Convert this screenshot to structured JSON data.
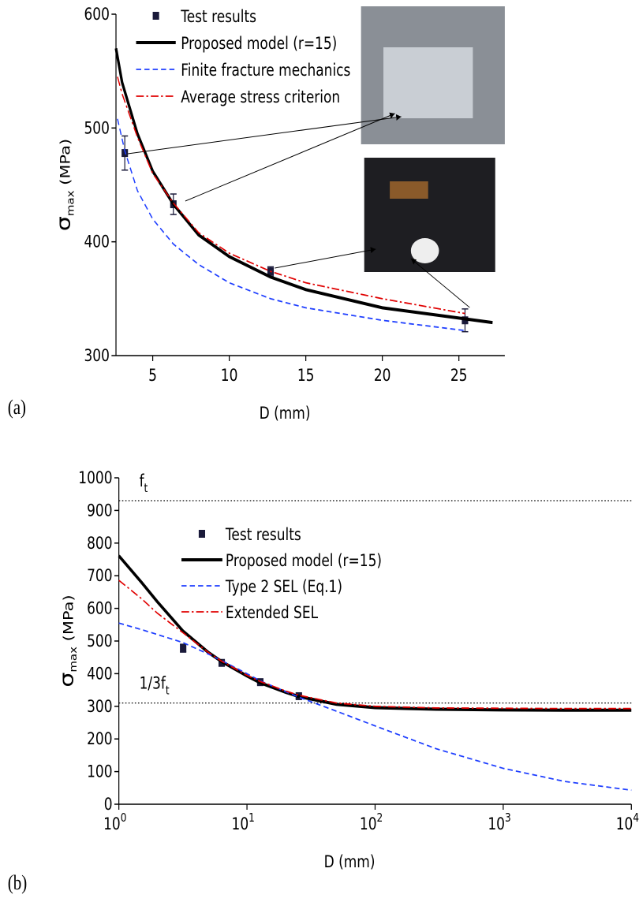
{
  "chart_data": [
    {
      "type": "line",
      "panel_label": "(a)",
      "x_label": "D (mm)",
      "y_label": "σ",
      "y_label_sub": "max",
      "y_label_unit": " (MPa)",
      "xlim": [
        2.6,
        28
      ],
      "xticks": [
        5,
        10,
        15,
        20,
        25
      ],
      "ylim": [
        300,
        600
      ],
      "yticks": [
        300,
        400,
        500,
        600
      ],
      "series": [
        {
          "name": "Test results",
          "color": "#1a1a3a",
          "marker": "square",
          "x": [
            3.175,
            6.35,
            12.7,
            25.4
          ],
          "values": [
            478,
            433,
            374,
            331
          ],
          "errors": [
            15,
            9,
            4,
            10
          ]
        },
        {
          "name": "Proposed model (r=15)",
          "color": "#000000",
          "style": "solid",
          "x": [
            2.6,
            3,
            4,
            5,
            6.35,
            8,
            10,
            12.7,
            15,
            20,
            25,
            27.2
          ],
          "values": [
            570,
            540,
            495,
            462,
            433,
            406,
            387,
            369,
            358,
            342,
            333,
            329
          ]
        },
        {
          "name": "Finite fracture mechanics",
          "color": "#1f3fff",
          "style": "dashed",
          "x": [
            2.7,
            3.175,
            4,
            5,
            6.35,
            8,
            10,
            12.7,
            15,
            20,
            25.4
          ],
          "values": [
            508,
            480,
            445,
            420,
            398,
            380,
            364,
            350,
            342,
            331,
            322
          ]
        },
        {
          "name": "Average stress criterion",
          "color": "#e00000",
          "style": "dashdot",
          "x": [
            2.7,
            3,
            4,
            5,
            6.35,
            8,
            10,
            12.7,
            15,
            20,
            25.4
          ],
          "values": [
            545,
            530,
            492,
            460,
            434,
            408,
            390,
            374,
            364,
            350,
            337
          ]
        }
      ]
    },
    {
      "type": "line",
      "panel_label": "(b)",
      "x_label": "D (mm)",
      "y_label": "σ",
      "y_label_sub": "max",
      "y_label_unit": " (MPa)",
      "xlog": true,
      "xlim": [
        1,
        10000
      ],
      "xticks": [
        {
          "value": 1,
          "label": "10",
          "exponent": "0"
        },
        {
          "value": 10,
          "label": "10",
          "exponent": "1"
        },
        {
          "value": 100,
          "label": "10",
          "exponent": "2"
        },
        {
          "value": 1000,
          "label": "10",
          "exponent": "3"
        },
        {
          "value": 10000,
          "label": "10",
          "exponent": "4"
        }
      ],
      "ylim": [
        0,
        1000
      ],
      "yticks": [
        0,
        100,
        200,
        300,
        400,
        500,
        600,
        700,
        800,
        900,
        1000
      ],
      "reference_lines": [
        {
          "value": 930,
          "label": "f",
          "sub": "t"
        },
        {
          "value": 310,
          "label": "1/3f",
          "sub": "t"
        }
      ],
      "series": [
        {
          "name": "Test results",
          "color": "#1a1a3a",
          "marker": "square",
          "x": [
            3.175,
            6.35,
            12.7,
            25.4
          ],
          "values": [
            478,
            433,
            374,
            331
          ],
          "errors": [
            12,
            7,
            5,
            6
          ]
        },
        {
          "name": "Proposed model (r=15)",
          "color": "#000000",
          "style": "solid",
          "x": [
            1,
            1.5,
            2,
            3.175,
            5,
            6.35,
            10,
            12.7,
            20,
            25.4,
            50,
            100,
            300,
            1000,
            3000,
            10000
          ],
          "values": [
            761,
            680,
            620,
            530,
            465,
            437,
            393,
            372,
            343,
            330,
            306,
            296,
            291,
            289,
            288,
            288
          ]
        },
        {
          "name": "Type 2 SEL (Eq.1)",
          "color": "#1f3fff",
          "style": "dashed",
          "x": [
            1,
            1.5,
            2,
            3.175,
            5,
            6.35,
            10,
            12.7,
            20,
            25.4,
            50,
            100,
            300,
            1000,
            3000,
            10000
          ],
          "values": [
            555,
            535,
            520,
            495,
            460,
            440,
            400,
            378,
            345,
            328,
            285,
            240,
            170,
            110,
            70,
            43
          ]
        },
        {
          "name": "Extended SEL",
          "color": "#e00000",
          "style": "dashdot",
          "x": [
            1,
            1.5,
            2,
            3.175,
            5,
            6.35,
            10,
            12.7,
            20,
            25.4,
            50,
            100,
            300,
            1000,
            3000,
            10000
          ],
          "values": [
            686,
            630,
            585,
            525,
            465,
            438,
            395,
            376,
            347,
            334,
            310,
            300,
            295,
            294,
            293,
            293
          ]
        }
      ]
    }
  ]
}
